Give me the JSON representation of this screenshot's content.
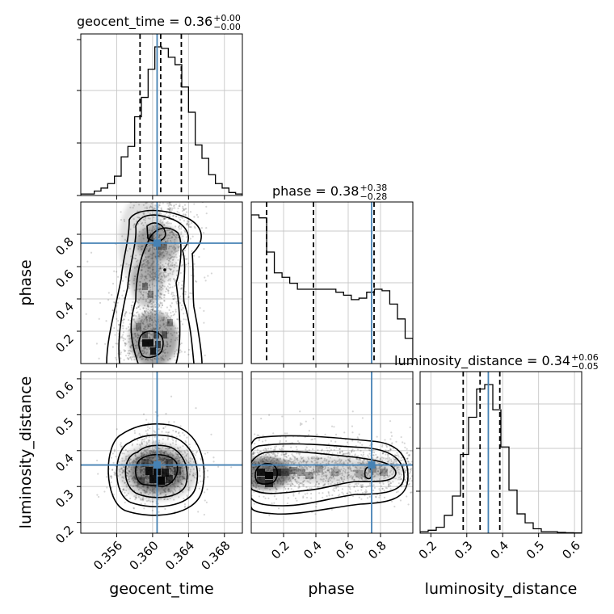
{
  "chart_data": {
    "type": "corner",
    "parameters": [
      "geocent_time",
      "phase",
      "luminosity_distance"
    ],
    "truth": {
      "geocent_time": 0.3605,
      "phase": 0.745,
      "luminosity_distance": 0.36
    },
    "truth_color": "#4682b4",
    "titles": {
      "geocent_time": {
        "prefix": "geocent_time = 0.36",
        "plus": "+0.00",
        "minus": "−0.00"
      },
      "phase": {
        "prefix": "phase = 0.38",
        "plus": "+0.38",
        "minus": "−0.28"
      },
      "luminosity_distance": {
        "prefix": "luminosity_distance = 0.34",
        "plus": "+0.06",
        "minus": "−0.05"
      }
    },
    "ranges": {
      "geocent_time": [
        0.352,
        0.37
      ],
      "phase": [
        0.0,
        1.0
      ],
      "luminosity_distance": [
        0.17,
        0.62
      ]
    },
    "ticks": {
      "geocent_time": [
        "0.356",
        "0.360",
        "0.364",
        "0.368"
      ],
      "phase_x": [
        "0.2",
        "0.4",
        "0.6",
        "0.8"
      ],
      "phase_y": [
        "0.2",
        "0.4",
        "0.6",
        "0.8"
      ],
      "luminosity_distance_x": [
        "0.2",
        "0.3",
        "0.4",
        "0.5",
        "0.6"
      ],
      "luminosity_distance_y": [
        "0.2",
        "0.3",
        "0.4",
        "0.5",
        "0.6"
      ]
    },
    "quantiles": {
      "geocent_time": [
        0.3586,
        0.3609,
        0.3632
      ],
      "phase": [
        0.095,
        0.385,
        0.76
      ],
      "luminosity_distance": [
        0.29,
        0.337,
        0.392
      ]
    },
    "hist_geocent_time": [
      0.01,
      0.01,
      0.03,
      0.05,
      0.08,
      0.13,
      0.26,
      0.33,
      0.53,
      0.66,
      0.85,
      1.0,
      0.99,
      0.93,
      0.88,
      0.73,
      0.56,
      0.34,
      0.25,
      0.14,
      0.08,
      0.05,
      0.02,
      0.01
    ],
    "hist_phase": [
      1.0,
      0.98,
      0.75,
      0.61,
      0.58,
      0.54,
      0.5,
      0.5,
      0.5,
      0.5,
      0.5,
      0.48,
      0.46,
      0.43,
      0.44,
      0.48,
      0.5,
      0.49,
      0.4,
      0.3,
      0.17
    ],
    "hist_luminosity_distance": [
      0.01,
      0.02,
      0.04,
      0.12,
      0.25,
      0.53,
      0.78,
      0.97,
      1.0,
      0.83,
      0.58,
      0.29,
      0.13,
      0.07,
      0.03,
      0.01,
      0.01,
      0.005,
      0.003,
      0.002
    ],
    "axis_labels": {
      "geocent_time": "geocent_time",
      "phase": "phase",
      "luminosity_distance": "luminosity_distance"
    }
  }
}
